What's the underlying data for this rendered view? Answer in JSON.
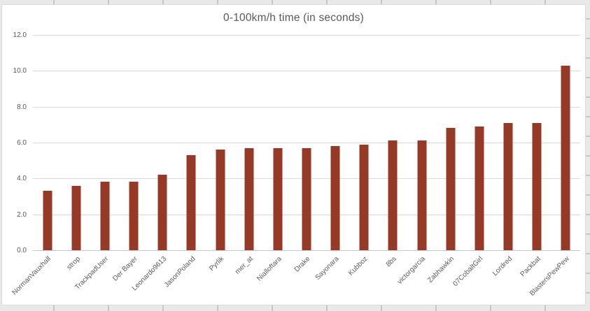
{
  "chart_data": {
    "type": "bar",
    "title": "0-100km/h time (in seconds)",
    "categories": [
      "NormanVauxhall",
      "strop",
      "TrackpadUser",
      "Der Bayer",
      "Leonardo9613",
      "JasonPoland",
      "Pyrlik",
      "mer_at",
      "Nialloftara",
      "Drake",
      "Sayonara",
      "Kubboz",
      "8bs",
      "victorgarcia",
      "Zabhawkin",
      "07CobaltGirl",
      "Lordred",
      "Packbat",
      "BlastersPewPew"
    ],
    "values": [
      3.3,
      3.6,
      3.8,
      3.8,
      4.2,
      5.3,
      5.6,
      5.7,
      5.7,
      5.7,
      5.8,
      5.9,
      6.1,
      6.1,
      6.8,
      6.9,
      7.1,
      7.1,
      10.3
    ],
    "xlabel": "",
    "ylabel": "",
    "ylim": [
      0,
      12
    ],
    "ytick_labels": [
      "0.0",
      "2.0",
      "4.0",
      "6.0",
      "8.0",
      "10.0",
      "12.0"
    ],
    "grid": true,
    "legend": false,
    "bar_color": "#963a27",
    "gridline_color": "#d9d9d9",
    "axis_text_color": "#595959",
    "title_color": "#595959"
  }
}
